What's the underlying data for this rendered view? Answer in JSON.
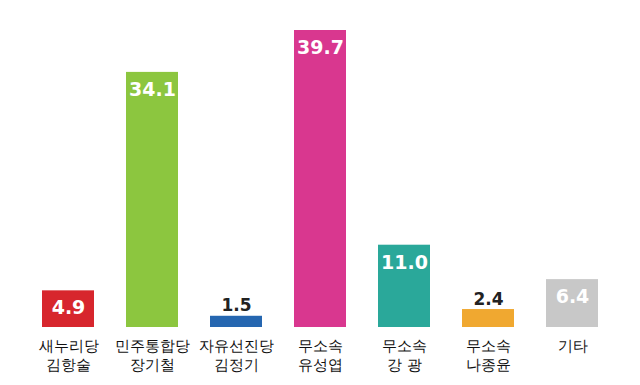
{
  "chart_data": {
    "type": "bar",
    "categories": [
      "새누리당\n김항술",
      "민주통합당\n장기철",
      "자유선진당\n김정기",
      "무소속\n유성엽",
      "무소속\n강 광",
      "무소속\n나종윤",
      "기타"
    ],
    "values": [
      4.9,
      34.1,
      1.5,
      39.7,
      11.0,
      2.4,
      6.4
    ],
    "value_labels": [
      "4.9",
      "34.1",
      "1.5",
      "39.7",
      "11.0",
      "2.4",
      "6.4"
    ],
    "colors": [
      "#d7262d",
      "#8cc63f",
      "#2566b0",
      "#d9378f",
      "#2aa89a",
      "#f0a830",
      "#c8c8c8"
    ],
    "data_labels": true,
    "tick_labels": "x"
  }
}
